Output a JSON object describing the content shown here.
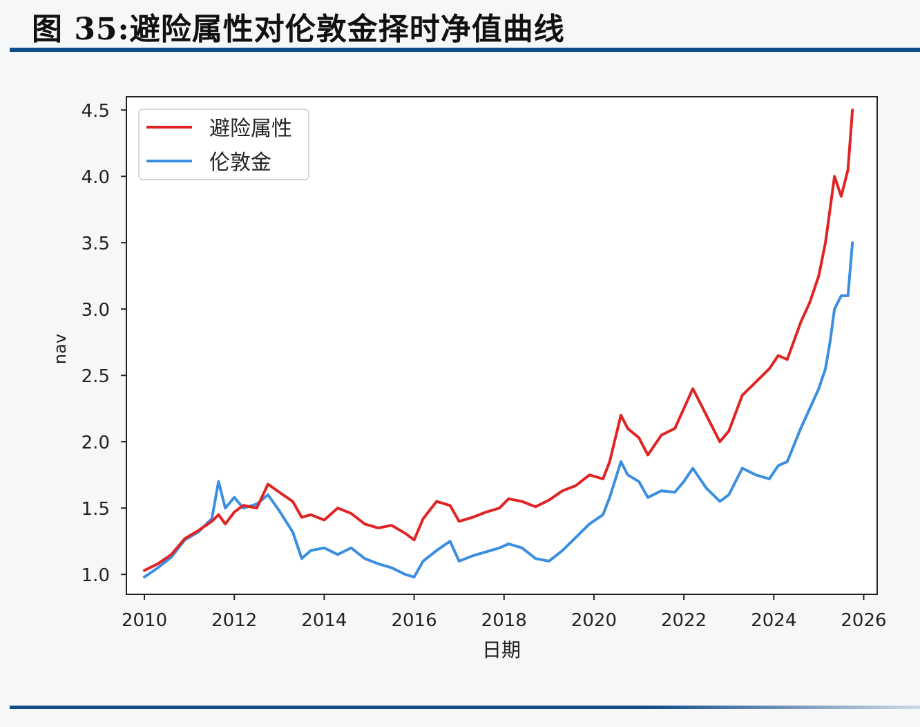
{
  "figure": {
    "title": "图 35:避险属性对伦敦金择时净值曲线"
  },
  "colors": {
    "rule": "#0f4c8a",
    "series_red": "#e02424",
    "series_blue": "#3b8ee0",
    "axes": "#222222"
  },
  "chart_data": {
    "type": "line",
    "title": "",
    "xlabel": "日期",
    "ylabel": "nav",
    "xlim": [
      2009.6,
      2026.3
    ],
    "ylim": [
      0.85,
      4.6
    ],
    "x_ticks": [
      2010,
      2012,
      2014,
      2016,
      2018,
      2020,
      2022,
      2024,
      2026
    ],
    "x_tick_labels": [
      "2010",
      "2012",
      "2014",
      "2016",
      "2018",
      "2020",
      "2022",
      "2024",
      "2026"
    ],
    "y_ticks": [
      1.0,
      1.5,
      2.0,
      2.5,
      3.0,
      3.5,
      4.0,
      4.5
    ],
    "y_tick_labels": [
      "1.0",
      "1.5",
      "2.0",
      "2.5",
      "3.0",
      "3.5",
      "4.0",
      "4.5"
    ],
    "legend_position": "top-left",
    "grid": false,
    "series": [
      {
        "name": "避险属性",
        "color": "#e02424",
        "x": [
          2010.0,
          2010.3,
          2010.6,
          2010.9,
          2011.2,
          2011.5,
          2011.65,
          2011.8,
          2012.0,
          2012.2,
          2012.5,
          2012.75,
          2013.0,
          2013.3,
          2013.5,
          2013.7,
          2014.0,
          2014.3,
          2014.6,
          2014.9,
          2015.2,
          2015.5,
          2015.8,
          2016.0,
          2016.2,
          2016.5,
          2016.8,
          2017.0,
          2017.3,
          2017.6,
          2017.9,
          2018.1,
          2018.4,
          2018.7,
          2019.0,
          2019.3,
          2019.6,
          2019.9,
          2020.2,
          2020.35,
          2020.6,
          2020.75,
          2021.0,
          2021.2,
          2021.5,
          2021.8,
          2022.0,
          2022.2,
          2022.5,
          2022.8,
          2023.0,
          2023.3,
          2023.6,
          2023.9,
          2024.1,
          2024.3,
          2024.6,
          2024.8,
          2025.0,
          2025.15,
          2025.25,
          2025.35,
          2025.5,
          2025.65,
          2025.75
        ],
        "values": [
          1.03,
          1.08,
          1.15,
          1.27,
          1.33,
          1.4,
          1.45,
          1.38,
          1.47,
          1.52,
          1.5,
          1.68,
          1.62,
          1.55,
          1.43,
          1.45,
          1.41,
          1.5,
          1.46,
          1.38,
          1.35,
          1.37,
          1.31,
          1.26,
          1.42,
          1.55,
          1.52,
          1.4,
          1.43,
          1.47,
          1.5,
          1.57,
          1.55,
          1.51,
          1.56,
          1.63,
          1.67,
          1.75,
          1.72,
          1.85,
          2.2,
          2.1,
          2.03,
          1.9,
          2.05,
          2.1,
          2.25,
          2.4,
          2.2,
          2.0,
          2.08,
          2.35,
          2.45,
          2.55,
          2.65,
          2.62,
          2.9,
          3.05,
          3.25,
          3.5,
          3.75,
          4.0,
          3.85,
          4.05,
          4.5
        ]
      },
      {
        "name": "伦敦金",
        "color": "#3b8ee0",
        "x": [
          2010.0,
          2010.3,
          2010.6,
          2010.9,
          2011.2,
          2011.5,
          2011.65,
          2011.8,
          2012.0,
          2012.2,
          2012.5,
          2012.75,
          2013.0,
          2013.3,
          2013.5,
          2013.7,
          2014.0,
          2014.3,
          2014.6,
          2014.9,
          2015.2,
          2015.5,
          2015.8,
          2016.0,
          2016.2,
          2016.5,
          2016.8,
          2017.0,
          2017.3,
          2017.6,
          2017.9,
          2018.1,
          2018.4,
          2018.7,
          2019.0,
          2019.3,
          2019.6,
          2019.9,
          2020.2,
          2020.35,
          2020.6,
          2020.75,
          2021.0,
          2021.2,
          2021.5,
          2021.8,
          2022.0,
          2022.2,
          2022.5,
          2022.8,
          2023.0,
          2023.3,
          2023.6,
          2023.9,
          2024.1,
          2024.3,
          2024.6,
          2024.8,
          2025.0,
          2025.15,
          2025.25,
          2025.35,
          2025.5,
          2025.65,
          2025.75
        ],
        "values": [
          0.98,
          1.05,
          1.13,
          1.26,
          1.32,
          1.42,
          1.7,
          1.5,
          1.58,
          1.5,
          1.53,
          1.6,
          1.48,
          1.32,
          1.12,
          1.18,
          1.2,
          1.15,
          1.2,
          1.12,
          1.08,
          1.05,
          1.0,
          0.98,
          1.1,
          1.18,
          1.25,
          1.1,
          1.14,
          1.17,
          1.2,
          1.23,
          1.2,
          1.12,
          1.1,
          1.18,
          1.28,
          1.38,
          1.45,
          1.58,
          1.85,
          1.75,
          1.7,
          1.58,
          1.63,
          1.62,
          1.7,
          1.8,
          1.65,
          1.55,
          1.6,
          1.8,
          1.75,
          1.72,
          1.82,
          1.85,
          2.1,
          2.25,
          2.4,
          2.55,
          2.75,
          3.0,
          3.1,
          3.1,
          3.5
        ]
      }
    ]
  }
}
